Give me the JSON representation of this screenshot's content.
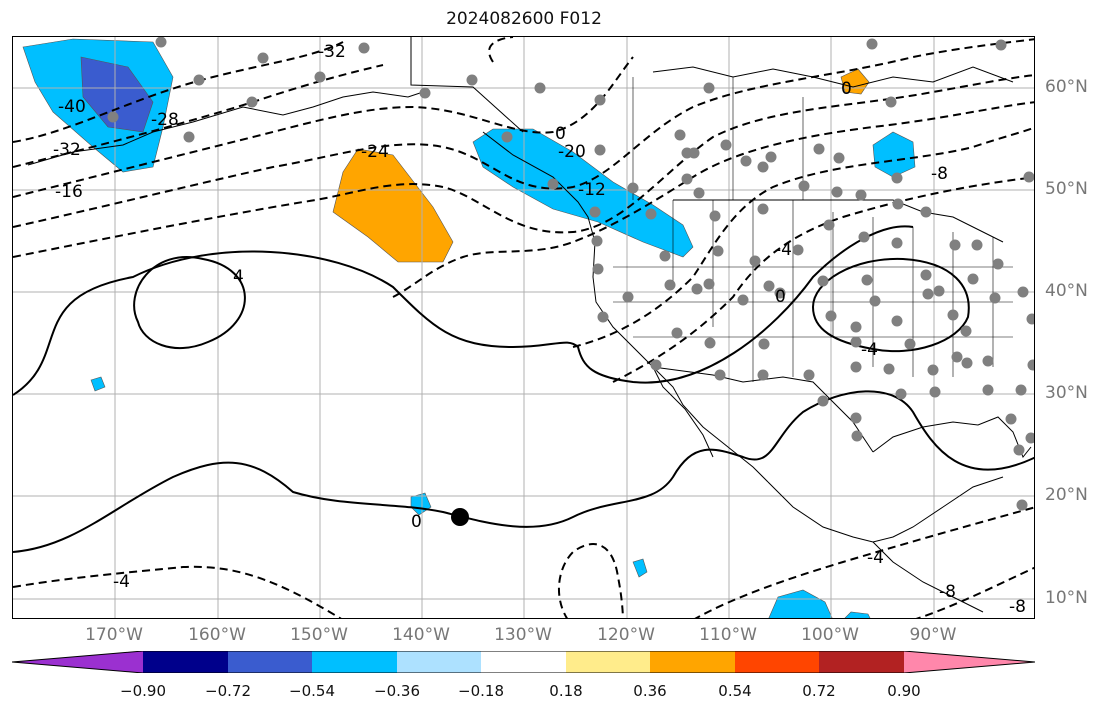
{
  "title": "2024082600 F012",
  "lon_labels": [
    "170°W",
    "160°W",
    "150°W",
    "140°W",
    "130°W",
    "120°W",
    "110°W",
    "100°W",
    "90°W"
  ],
  "lat_labels": [
    "60°N",
    "50°N",
    "40°N",
    "30°N",
    "20°N",
    "10°N"
  ],
  "colorbar": {
    "ticks": [
      "−0.90",
      "−0.72",
      "−0.54",
      "−0.36",
      "−0.18",
      "0.18",
      "0.36",
      "0.54",
      "0.72",
      "0.90"
    ],
    "colors": [
      "#9b30d0",
      "#00008b",
      "#3a5ccf",
      "#00bfff",
      "#ade1ff",
      "#ffffff",
      "#ffec8b",
      "#ffa500",
      "#ff4500",
      "#b22222",
      "#ff87ab"
    ]
  },
  "contour_labels": [
    "-32",
    "-40",
    "-32",
    "-28",
    "-16",
    "-24",
    "-20",
    "-12",
    "-8",
    "0",
    "0",
    "0",
    "4",
    "-4",
    "-4",
    "0",
    "-4",
    "-8",
    "-8",
    "-4"
  ],
  "legend_colors": {
    "negative_light": "#00bfff",
    "negative_dark": "#3a5ccf",
    "positive": "#ffa500",
    "stations": "#808080",
    "grid": "#b0b0b0"
  }
}
